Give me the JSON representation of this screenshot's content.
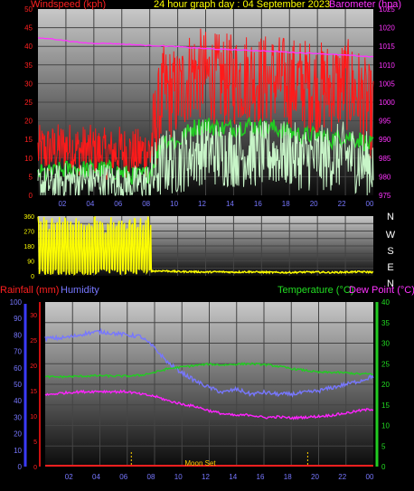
{
  "top_header": {
    "windspeed_label": "Windspeed (kph)",
    "title": "24 hour graph day : 04 September 2023",
    "barometer_label": "Barometer (hpa)"
  },
  "bottom_header": {
    "rainfall_label": "Rainfall (mm)",
    "humidity_label": "Humidity",
    "temperature_label": "Temperature (°C)",
    "dewpoint_label": "Dew Point (°C)"
  },
  "compass": {
    "n1": "N",
    "w": "W",
    "s": "S",
    "e": "E",
    "n2": "N"
  },
  "moon_label": "Moon Set",
  "colors": {
    "wind_gust": "#ff1a1a",
    "wind_avg": "#22cc22",
    "wind_speed": "#c8f5c8",
    "barometer": "#ff33ff",
    "direction": "#ffff00",
    "humidity": "#7777ff",
    "temperature": "#22cc22",
    "dewpoint": "#ff22ff",
    "rainfall": "#ff2020"
  },
  "chart_data": [
    {
      "type": "line",
      "title": "24 hour graph day : 04 September 2023",
      "ylabel": "Windspeed (kph)",
      "y2label": "Barometer (hpa)",
      "ylim": [
        0,
        50
      ],
      "y2lim": [
        975,
        1025
      ],
      "yticks": [
        "0",
        "5",
        "10",
        "15",
        "20",
        "25",
        "30",
        "35",
        "40",
        "45",
        "50"
      ],
      "y2ticks": [
        "975",
        "980",
        "985",
        "990",
        "995",
        "1000",
        "1005",
        "1010",
        "1015",
        "1020",
        "1025"
      ],
      "xticks": [
        "02",
        "04",
        "06",
        "08",
        "10",
        "12",
        "14",
        "16",
        "18",
        "20",
        "22",
        "00"
      ],
      "x": [
        0,
        1,
        2,
        3,
        4,
        5,
        6,
        7,
        8,
        9,
        10,
        11,
        12,
        13,
        14,
        15,
        16,
        17,
        18,
        19,
        20,
        21,
        22,
        23,
        24
      ],
      "series": [
        {
          "name": "Windspeed (kph)",
          "axis": "left",
          "values": [
            12,
            12,
            13,
            12,
            12,
            11,
            12,
            11,
            12,
            28,
            27,
            33,
            32,
            31,
            31,
            32,
            31,
            31,
            30,
            30,
            29,
            29,
            30,
            27,
            21
          ]
        },
        {
          "name": "Gust",
          "axis": "left",
          "values": [
            6,
            6,
            7,
            7,
            7,
            7,
            6,
            5,
            6,
            15,
            14,
            18,
            19,
            18,
            18,
            19,
            18,
            18,
            17,
            16,
            16,
            15,
            16,
            15,
            13
          ]
        },
        {
          "name": "Wind",
          "axis": "left",
          "values": [
            3,
            3,
            4,
            4,
            4,
            4,
            3,
            3,
            4,
            9,
            9,
            11,
            12,
            11,
            11,
            11,
            11,
            11,
            11,
            10,
            10,
            10,
            11,
            9,
            8
          ]
        },
        {
          "name": "Barometer (hpa)",
          "axis": "right",
          "values": [
            1017.2,
            1017.0,
            1016.5,
            1016.0,
            1015.8,
            1015.8,
            1015.6,
            1015.4,
            1015.2,
            1015.1,
            1014.9,
            1014.6,
            1014.4,
            1014.2,
            1014.1,
            1013.9,
            1013.8,
            1013.6,
            1013.4,
            1013.2,
            1013.1,
            1012.8,
            1012.6,
            1012.4,
            1012.2
          ]
        }
      ]
    },
    {
      "type": "line",
      "ylabel": "Wind direction",
      "ylim": [
        0,
        360
      ],
      "yticks": [
        "0",
        "45",
        "90",
        "135",
        "180",
        "225",
        "270",
        "315",
        "360"
      ],
      "direction_labels": [
        "N",
        "W",
        "S",
        "E",
        "N"
      ],
      "x": [
        0,
        1,
        2,
        3,
        4,
        5,
        6,
        7,
        8,
        9,
        10,
        11,
        12,
        13,
        14,
        15,
        16,
        17,
        18,
        19,
        20,
        21,
        22,
        23,
        24
      ],
      "series": [
        {
          "name": "Wind direction",
          "values": [
            200,
            180,
            190,
            170,
            180,
            175,
            185,
            170,
            28,
            30,
            25,
            25,
            22,
            24,
            22,
            24,
            22,
            20,
            20,
            22,
            22,
            20,
            22,
            24,
            22
          ]
        }
      ]
    },
    {
      "type": "line",
      "ylabel": "Humidity",
      "y2label": "Temperature (°C)",
      "ylim": [
        0,
        100
      ],
      "y2lim": [
        0,
        40
      ],
      "yticks": [
        "0",
        "10",
        "20",
        "30",
        "40",
        "50",
        "60",
        "70",
        "80",
        "90",
        "100"
      ],
      "rain_ticks": [
        "0",
        "5",
        "10",
        "15",
        "20",
        "25",
        "30"
      ],
      "y2ticks": [
        "0",
        "5",
        "10",
        "15",
        "20",
        "25",
        "30",
        "35",
        "40"
      ],
      "xticks": [
        "02",
        "04",
        "06",
        "08",
        "10",
        "12",
        "14",
        "16",
        "18",
        "20",
        "22",
        "00"
      ],
      "x": [
        0,
        1,
        2,
        3,
        4,
        5,
        6,
        7,
        8,
        9,
        10,
        11,
        12,
        13,
        14,
        15,
        16,
        17,
        18,
        19,
        20,
        21,
        22,
        23,
        24
      ],
      "series": [
        {
          "name": "Humidity",
          "axis": "left",
          "values": [
            78,
            78,
            79,
            81,
            82,
            81,
            80,
            79,
            72,
            63,
            57,
            52,
            48,
            45,
            47,
            44,
            45,
            44,
            44,
            45,
            46,
            48,
            50,
            52,
            55
          ]
        },
        {
          "name": "Temperature (°C)",
          "axis": "right",
          "values": [
            21.8,
            21.8,
            21.9,
            22.0,
            22.1,
            22.0,
            22.0,
            22.2,
            22.9,
            23.8,
            24.2,
            24.6,
            24.9,
            24.7,
            24.9,
            25.0,
            24.8,
            24.4,
            23.8,
            23.4,
            22.9,
            22.9,
            22.8,
            22.5,
            22.5
          ]
        },
        {
          "name": "Dew Point (°C)",
          "axis": "right",
          "values": [
            17.4,
            17.8,
            18.1,
            18.2,
            18.3,
            18.2,
            18.2,
            17.6,
            17.1,
            16.0,
            15.2,
            14.6,
            13.6,
            12.8,
            12.4,
            12.6,
            11.9,
            12.1,
            11.8,
            12.0,
            12.2,
            12.5,
            13.0,
            13.6,
            14.0
          ]
        },
        {
          "name": "Rainfall (mm)",
          "axis": "left",
          "values": [
            0,
            0,
            0,
            0,
            0,
            0,
            0,
            0,
            0,
            0,
            0,
            0,
            0,
            0,
            0,
            0,
            0,
            0,
            0,
            0,
            0,
            0,
            0,
            0,
            0
          ]
        }
      ],
      "annotations": [
        "Moon Set"
      ]
    }
  ]
}
